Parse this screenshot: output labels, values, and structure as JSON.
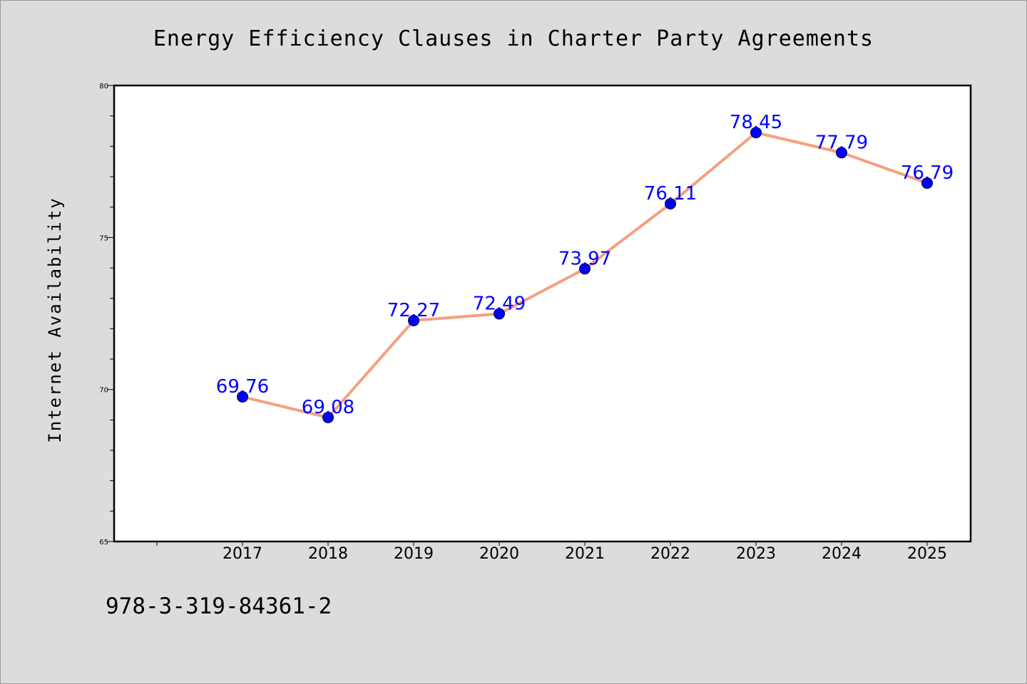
{
  "chart_data": {
    "type": "line",
    "title": "Energy Efficiency Clauses in Charter Party Agreements",
    "xlabel": "",
    "ylabel": "Internet Availability",
    "categories": [
      "2017",
      "2018",
      "2019",
      "2020",
      "2021",
      "2022",
      "2023",
      "2024",
      "2025"
    ],
    "series": [
      {
        "values": [
          69.76,
          69.08,
          72.27,
          72.49,
          73.97,
          76.11,
          78.45,
          77.79,
          76.79
        ],
        "labels": [
          "69.76",
          "69.08",
          "72.27",
          "72.49",
          "73.97",
          "76.11",
          "78.45",
          "77.79",
          "76.79"
        ],
        "line_color": "#f4a07e",
        "marker_color": "#0000ff",
        "label_color": "#0000ff"
      }
    ],
    "ylim": [
      65,
      80
    ],
    "yticks": [
      "65",
      "70",
      "75",
      "80"
    ],
    "grid": false,
    "legend": "none"
  },
  "footer": {
    "isbn": "978-3-319-84361-2"
  },
  "colors": {
    "page_background": "#dcdcdc",
    "plot_background": "#ffffff"
  }
}
